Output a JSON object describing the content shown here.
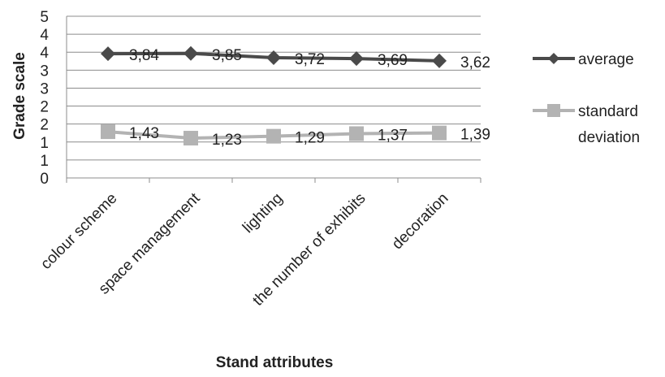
{
  "chart_data": {
    "type": "line",
    "categories": [
      "colour scheme",
      "space management",
      "lighting",
      "the number of exhibits",
      "decoration"
    ],
    "y_tick_labels": [
      "0",
      "1",
      "1",
      "2",
      "2",
      "3",
      "3",
      "4",
      "4",
      "5"
    ],
    "ylim": [
      0,
      5
    ],
    "grid": true,
    "legend_position": "right",
    "xlabel": "Stand attributes",
    "ylabel": "Grade scale",
    "series": [
      {
        "name": "average",
        "values": [
          3.84,
          3.85,
          3.72,
          3.69,
          3.62
        ],
        "labels": [
          "3,84",
          "3,85",
          "3,72",
          "3,69",
          "3,62"
        ],
        "color": "#4a4a4a",
        "marker": "diamond"
      },
      {
        "name": "standard deviation",
        "legend_lines": [
          "standard",
          "deviation"
        ],
        "values": [
          1.43,
          1.23,
          1.29,
          1.37,
          1.39
        ],
        "labels": [
          "1,43",
          "1,23",
          "1,29",
          "1,37",
          "1,39"
        ],
        "color": "#b3b3b3",
        "marker": "square"
      }
    ]
  }
}
